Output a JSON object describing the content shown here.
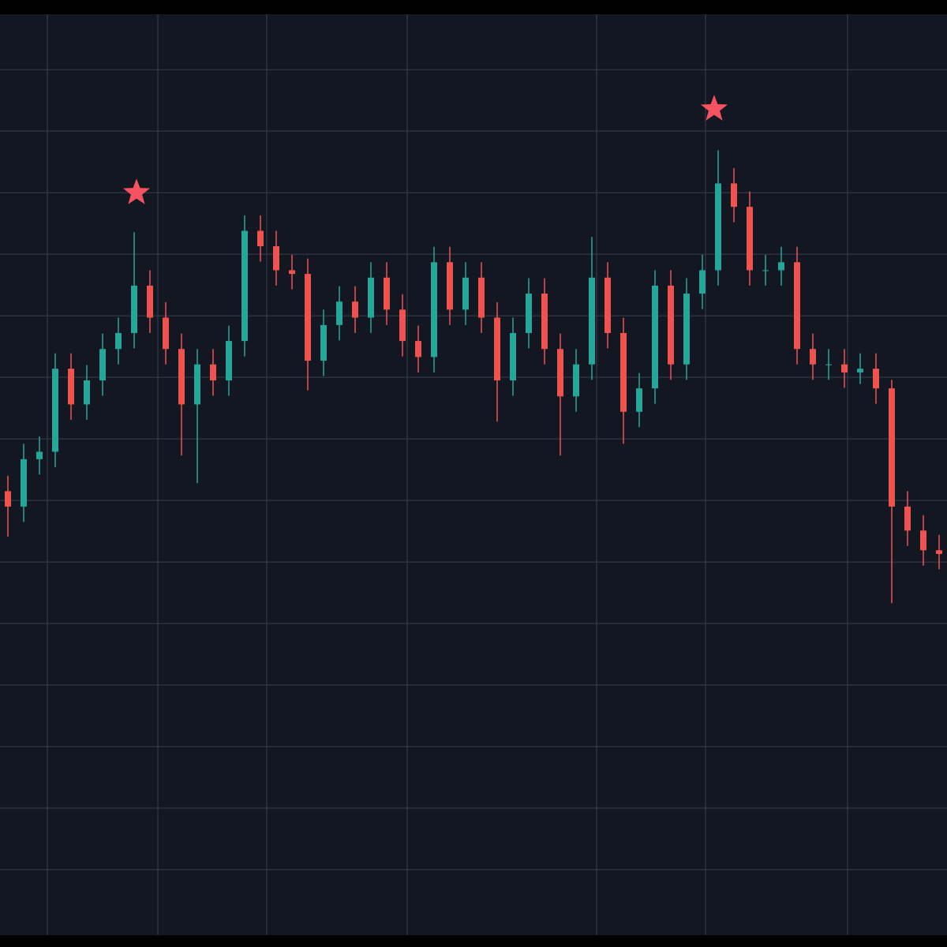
{
  "chart_data": {
    "type": "candlestick",
    "x": [
      5,
      15,
      25,
      35,
      45,
      55,
      65,
      75,
      85,
      95,
      105,
      115,
      125,
      135,
      145,
      155,
      165,
      175,
      185,
      195,
      205,
      215,
      225,
      235,
      245,
      255,
      265,
      275,
      285,
      295,
      305,
      315,
      325,
      335,
      345,
      355,
      365,
      375,
      385,
      395,
      405,
      415,
      425,
      435,
      445,
      455,
      465,
      475,
      485,
      495,
      505,
      515,
      525,
      535,
      545,
      555,
      565,
      575,
      585,
      595
    ],
    "open": [
      6.15,
      5.9,
      6.67,
      6.79,
      8.14,
      7.56,
      7.95,
      8.46,
      8.72,
      9.49,
      8.97,
      8.46,
      7.56,
      8.21,
      7.95,
      8.59,
      10.38,
      10.13,
      9.74,
      9.68,
      8.27,
      8.85,
      9.23,
      8.97,
      9.62,
      9.1,
      8.59,
      8.33,
      9.87,
      9.1,
      9.62,
      8.97,
      7.95,
      8.72,
      9.36,
      8.46,
      7.69,
      8.21,
      9.62,
      8.72,
      7.44,
      7.82,
      9.49,
      8.21,
      9.36,
      9.74,
      11.15,
      10.77,
      9.74,
      9.74,
      9.87,
      8.46,
      8.21,
      8.21,
      8.08,
      8.14,
      7.82,
      5.9,
      5.51,
      5.19
    ],
    "high": [
      6.4,
      6.92,
      7.04,
      8.39,
      8.39,
      8.2,
      8.71,
      8.97,
      10.36,
      9.74,
      9.22,
      8.71,
      8.46,
      8.46,
      8.84,
      10.63,
      10.63,
      10.38,
      9.99,
      9.93,
      9.1,
      9.48,
      9.48,
      9.87,
      9.87,
      9.35,
      8.84,
      10.12,
      10.12,
      9.87,
      9.87,
      9.22,
      8.97,
      9.61,
      9.61,
      8.71,
      8.46,
      10.28,
      9.87,
      8.97,
      8.07,
      9.74,
      9.74,
      9.61,
      9.99,
      11.69,
      11.4,
      11.02,
      9.99,
      10.12,
      10.12,
      8.71,
      8.46,
      8.46,
      8.39,
      8.39,
      7.96,
      6.15,
      5.76,
      5.44
    ],
    "low": [
      5.41,
      5.65,
      6.42,
      6.54,
      7.31,
      7.31,
      7.7,
      8.21,
      8.47,
      8.72,
      8.21,
      6.73,
      6.28,
      7.7,
      7.7,
      8.34,
      9.88,
      9.49,
      9.43,
      7.79,
      8.02,
      8.6,
      8.72,
      8.72,
      8.85,
      8.34,
      8.08,
      8.08,
      8.85,
      8.85,
      8.72,
      7.28,
      7.7,
      8.47,
      8.21,
      6.73,
      7.44,
      7.96,
      8.47,
      6.92,
      7.19,
      7.57,
      7.96,
      7.96,
      9.11,
      9.49,
      10.52,
      9.49,
      9.49,
      9.49,
      8.21,
      7.96,
      7.96,
      7.83,
      7.89,
      7.57,
      4.33,
      5.26,
      4.94,
      4.88
    ],
    "close": [
      5.9,
      6.67,
      6.79,
      8.14,
      7.56,
      7.95,
      8.46,
      8.72,
      9.49,
      8.97,
      8.46,
      7.56,
      8.21,
      7.95,
      8.59,
      10.38,
      10.13,
      9.74,
      9.68,
      8.27,
      8.85,
      9.23,
      8.97,
      9.62,
      9.1,
      8.59,
      8.33,
      9.87,
      9.1,
      9.62,
      8.97,
      7.95,
      8.72,
      9.36,
      8.46,
      7.69,
      8.21,
      9.62,
      8.72,
      7.44,
      7.82,
      9.49,
      8.21,
      9.36,
      9.74,
      11.15,
      10.77,
      9.74,
      9.74,
      9.87,
      8.46,
      8.21,
      8.21,
      8.08,
      8.14,
      7.82,
      5.9,
      5.51,
      5.19,
      5.13
    ],
    "up_color": "#26a69a",
    "down_color": "#ef5350",
    "markers": {
      "x": [
        86.5,
        452.5
      ],
      "y": [
        11.0,
        12.36
      ],
      "color": "#f6525f"
    },
    "xlim": [
      0,
      600
    ],
    "xticks": [
      30,
      100,
      169,
      258,
      378,
      447,
      537
    ],
    "ylim": [
      -1,
      13.9
    ],
    "yticks": [
      0,
      1,
      2,
      3,
      4,
      5,
      6,
      7,
      8,
      9,
      10,
      11,
      12,
      13
    ],
    "grid": true
  }
}
